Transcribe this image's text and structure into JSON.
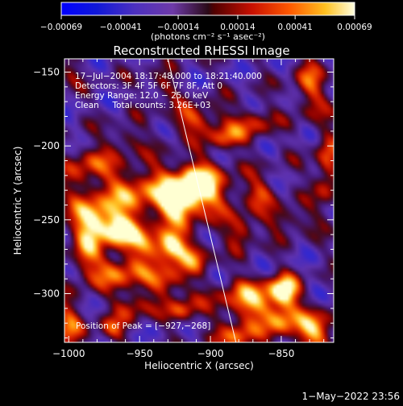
{
  "colorbar": {
    "tick_labels": [
      "−0.00069",
      "−0.00041",
      "−0.00014",
      "0.00014",
      "0.00041",
      "0.00069"
    ],
    "ticks": [
      -0.00069,
      -0.00041,
      -0.00014,
      0.00014,
      0.00041,
      0.00069
    ],
    "range": [
      -0.00069,
      0.00069
    ],
    "unit_label": "(photons cm⁻² s⁻¹ asec⁻²)"
  },
  "plot": {
    "title": "Reconstructed RHESSI Image",
    "info_lines": [
      "17−Jul−2004 18:17:48.000 to 18:21:40.000",
      "Detectors: 3F 4F 5F 6F 7F 8F, Att 0",
      "Energy Range: 12.0 − 25.0 keV",
      "Clean     Total counts: 3.26E+03"
    ],
    "peak_label": "Position of Peak = [−927,−268]",
    "xlabel": "Heliocentric X (arcsec)",
    "ylabel": "Heliocentric Y (arcsec)",
    "x_tick_labels": [
      "−1000",
      "−950",
      "−900",
      "−850"
    ],
    "y_tick_labels": [
      "−150",
      "−200",
      "−250",
      "−300"
    ]
  },
  "footer": {
    "date": "1−May−2022 23:56"
  },
  "chart_data": {
    "type": "heatmap",
    "title": "Reconstructed RHESSI Image",
    "xlabel": "Heliocentric X (arcsec)",
    "ylabel": "Heliocentric Y (arcsec)",
    "xlim": [
      -1003,
      -813
    ],
    "ylim": [
      -333,
      -141
    ],
    "x_ticks": [
      -1000,
      -950,
      -900,
      -850
    ],
    "y_ticks": [
      -150,
      -200,
      -250,
      -300
    ],
    "color_range": [
      -0.00069,
      0.00069
    ],
    "peak": [
      -927,
      -268
    ],
    "limb_line": [
      [
        -930,
        -141
      ],
      [
        -882,
        -333
      ]
    ],
    "blobs": [
      {
        "x": -940,
        "y": -232,
        "sx": 42,
        "sy": 14,
        "v": 0.7
      },
      {
        "x": -910,
        "y": -227,
        "sx": 10,
        "sy": 10,
        "v": 1.0
      },
      {
        "x": -925,
        "y": -240,
        "sx": 8,
        "sy": 8,
        "v": 0.65
      },
      {
        "x": -980,
        "y": -252,
        "sx": 12,
        "sy": 9,
        "v": 0.85
      },
      {
        "x": -963,
        "y": -258,
        "sx": 8,
        "sy": 7,
        "v": 0.9
      },
      {
        "x": -928,
        "y": -268,
        "sx": 7,
        "sy": 7,
        "v": 1.0
      },
      {
        "x": -945,
        "y": -268,
        "sx": 10,
        "sy": 8,
        "v": 0.6
      },
      {
        "x": -988,
        "y": -272,
        "sx": 7,
        "sy": 12,
        "v": 0.55
      },
      {
        "x": -965,
        "y": -285,
        "sx": 14,
        "sy": 8,
        "v": 0.7
      },
      {
        "x": -930,
        "y": -292,
        "sx": 10,
        "sy": 7,
        "v": 0.65
      },
      {
        "x": -912,
        "y": -275,
        "sx": 9,
        "sy": 8,
        "v": 0.55
      },
      {
        "x": -955,
        "y": -308,
        "sx": 9,
        "sy": 7,
        "v": 0.55
      },
      {
        "x": -920,
        "y": -312,
        "sx": 8,
        "sy": 6,
        "v": 0.6
      },
      {
        "x": -1000,
        "y": -320,
        "sx": 8,
        "sy": 12,
        "v": 0.55
      },
      {
        "x": -970,
        "y": -325,
        "sx": 7,
        "sy": 6,
        "v": 0.5
      },
      {
        "x": -870,
        "y": -305,
        "sx": 18,
        "sy": 10,
        "v": 0.8
      },
      {
        "x": -848,
        "y": -298,
        "sx": 7,
        "sy": 7,
        "v": 0.9
      },
      {
        "x": -826,
        "y": -325,
        "sx": 10,
        "sy": 9,
        "v": 0.85
      },
      {
        "x": -880,
        "y": -330,
        "sx": 10,
        "sy": 7,
        "v": 0.65
      },
      {
        "x": -850,
        "y": -320,
        "sx": 8,
        "sy": 8,
        "v": 0.6
      },
      {
        "x": -910,
        "y": -182,
        "sx": 14,
        "sy": 7,
        "v": 0.6
      },
      {
        "x": -870,
        "y": -185,
        "sx": 10,
        "sy": 8,
        "v": 0.5
      },
      {
        "x": -890,
        "y": -195,
        "sx": 8,
        "sy": 6,
        "v": 0.55
      },
      {
        "x": -985,
        "y": -210,
        "sx": 10,
        "sy": 8,
        "v": 0.45
      },
      {
        "x": -960,
        "y": -195,
        "sx": 8,
        "sy": 6,
        "v": 0.4
      },
      {
        "x": -830,
        "y": -160,
        "sx": 8,
        "sy": 14,
        "v": 0.55
      },
      {
        "x": -818,
        "y": -215,
        "sx": 6,
        "sy": 18,
        "v": 0.6
      },
      {
        "x": -845,
        "y": -250,
        "sx": 12,
        "sy": 6,
        "v": 0.4
      },
      {
        "x": -878,
        "y": -258,
        "sx": 7,
        "sy": 7,
        "v": 0.55
      },
      {
        "x": -935,
        "y": -160,
        "sx": 8,
        "sy": 6,
        "v": 0.4
      },
      {
        "x": -1000,
        "y": -150,
        "sx": 6,
        "sy": 6,
        "v": 0.3
      },
      {
        "x": -865,
        "y": -232,
        "sx": 7,
        "sy": 6,
        "v": 0.4
      }
    ]
  }
}
